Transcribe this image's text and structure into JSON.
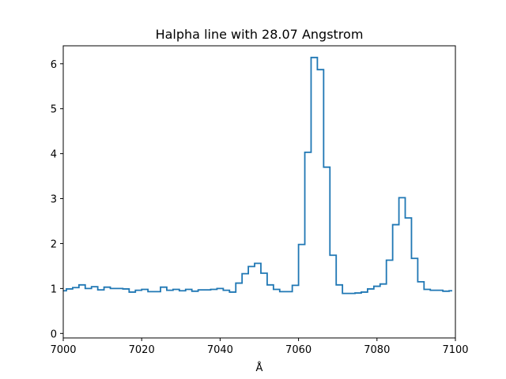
{
  "chart_data": {
    "type": "line",
    "drawstyle": "steps-mid",
    "title": "Halpha line with 28.07 Angstrom",
    "xlabel": "Å",
    "ylabel": "",
    "xlim": [
      7000,
      7100
    ],
    "ylim": [
      -0.1,
      6.4
    ],
    "xticks": [
      7000,
      7020,
      7040,
      7060,
      7080,
      7100
    ],
    "yticks": [
      0,
      1,
      2,
      3,
      4,
      5,
      6
    ],
    "grid": false,
    "legend": "none",
    "series": [
      {
        "color": "#1f77b4",
        "x": [
          7000.0,
          7001.6,
          7003.2,
          7004.8,
          7006.4,
          7008.0,
          7009.6,
          7011.2,
          7012.8,
          7014.4,
          7016.0,
          7017.6,
          7019.2,
          7020.8,
          7022.4,
          7024.0,
          7025.6,
          7027.2,
          7028.8,
          7030.4,
          7032.0,
          7033.6,
          7035.2,
          7036.8,
          7038.4,
          7040.0,
          7041.6,
          7043.2,
          7044.8,
          7046.4,
          7048.0,
          7049.6,
          7051.2,
          7052.8,
          7054.4,
          7056.0,
          7057.6,
          7059.2,
          7060.8,
          7062.4,
          7064.0,
          7065.6,
          7067.2,
          7068.8,
          7070.4,
          7072.0,
          7073.6,
          7075.2,
          7076.8,
          7078.4,
          7080.0,
          7081.6,
          7083.2,
          7084.8,
          7086.4,
          7088.0,
          7089.6,
          7091.2,
          7092.8,
          7094.4,
          7096.0,
          7097.6,
          7099.2
        ],
        "y": [
          0.95,
          0.99,
          1.02,
          1.08,
          1.0,
          1.04,
          0.97,
          1.03,
          1.0,
          1.0,
          0.99,
          0.92,
          0.96,
          0.98,
          0.93,
          0.93,
          1.03,
          0.96,
          0.98,
          0.95,
          0.98,
          0.94,
          0.97,
          0.97,
          0.98,
          1.0,
          0.96,
          0.92,
          1.12,
          1.33,
          1.49,
          1.56,
          1.34,
          1.08,
          0.98,
          0.93,
          0.93,
          1.07,
          1.98,
          4.03,
          6.14,
          5.87,
          3.7,
          1.74,
          1.08,
          0.89,
          0.89,
          0.9,
          0.92,
          0.99,
          1.05,
          1.1,
          1.63,
          2.42,
          3.02,
          2.57,
          1.67,
          1.15,
          0.98,
          0.96,
          0.96,
          0.94,
          0.95
        ]
      }
    ]
  }
}
